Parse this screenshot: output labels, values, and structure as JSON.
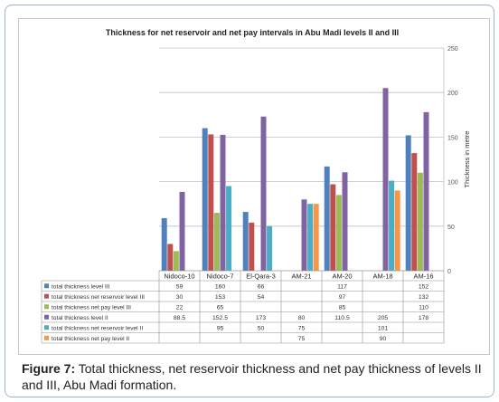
{
  "figure": {
    "caption_label": "Figure 7:",
    "caption_text": " Total thickness, net reservoir thickness and net pay thickness of levels II and III, Abu Madi formation."
  },
  "chart_data": {
    "type": "bar",
    "title": "Thickness for net reservoir and net pay intervals in Abu Madi levels II and III",
    "ylabel": "Thickness in metre",
    "ylim": [
      0,
      250
    ],
    "yticks": [
      0,
      50,
      100,
      150,
      200,
      250
    ],
    "grid": "horizontal major",
    "legend": "data table below chart",
    "categories": [
      "Nidoco-10",
      "Nidoco-7",
      "El-Qara-3",
      "AM-21",
      "AM-20",
      "AM-18",
      "AM-16"
    ],
    "series": [
      {
        "name": "total thickness level III",
        "color": "#4f81bd",
        "values": [
          59,
          160,
          66,
          null,
          117,
          null,
          152
        ],
        "labels": [
          "59",
          "160",
          "66",
          "",
          "117",
          "",
          "152"
        ]
      },
      {
        "name": "total thickness net reservoir level III",
        "color": "#c0504d",
        "values": [
          30,
          153,
          54,
          null,
          97,
          null,
          132
        ],
        "labels": [
          "30",
          "153",
          "54",
          "",
          "97",
          "",
          "132"
        ]
      },
      {
        "name": "total thickness net pay level III",
        "color": "#9bbb59",
        "values": [
          22,
          65,
          null,
          null,
          85,
          null,
          110
        ],
        "labels": [
          "22",
          "65",
          "",
          "",
          "85",
          "",
          "110"
        ]
      },
      {
        "name": "total thickness level II",
        "color": "#8064a2",
        "values": [
          88.5,
          152.5,
          173,
          80,
          110.5,
          205,
          178
        ],
        "labels": [
          "88.5",
          "152.5",
          "173",
          "80",
          "110.5",
          "205",
          "178"
        ]
      },
      {
        "name": "total thickness net reservoir level II",
        "color": "#4bacc6",
        "values": [
          null,
          95,
          50,
          75,
          null,
          101,
          null
        ],
        "labels": [
          "",
          "95",
          "50",
          "75",
          "",
          "101",
          ""
        ]
      },
      {
        "name": "total thickness net pay level II",
        "color": "#f79646",
        "values": [
          null,
          null,
          null,
          75,
          null,
          90,
          null
        ],
        "labels": [
          "",
          "",
          "",
          "75",
          "",
          "90",
          ""
        ]
      }
    ]
  }
}
